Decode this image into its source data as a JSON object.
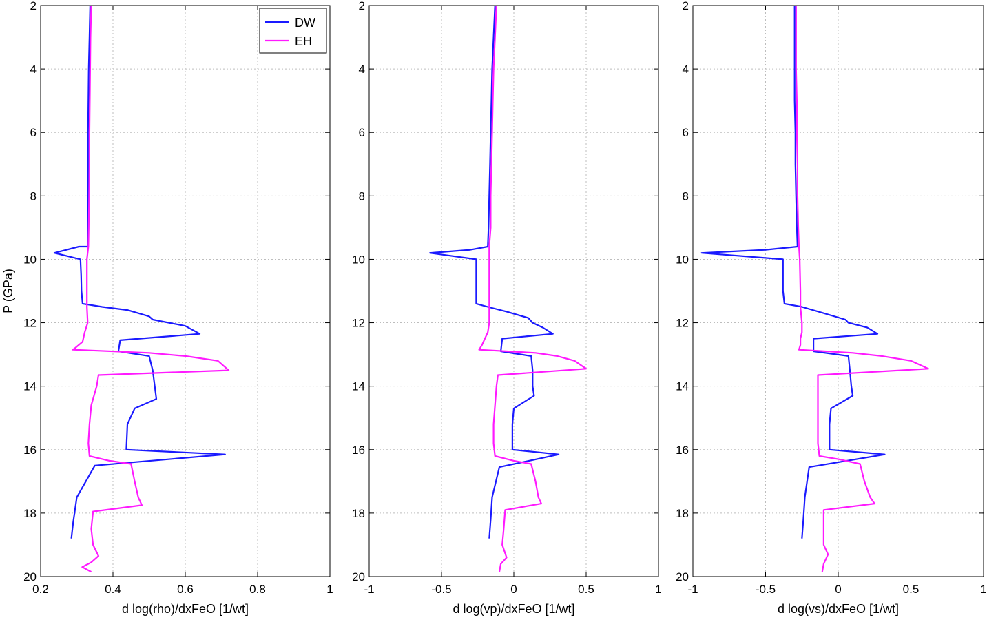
{
  "figure": {
    "colors": {
      "DW": "#1a1aff",
      "EH": "#ff1aff",
      "grid": "#bdbdbd",
      "axis": "#000000"
    }
  },
  "chart_data": [
    {
      "type": "line",
      "xlabel": "d log(rho)/dxFeO [1/wt]",
      "ylabel": "P (GPa)",
      "xlim": [
        0.2,
        1
      ],
      "ylim": [
        2,
        20
      ],
      "y_reversed": true,
      "grid": true,
      "xticks": [
        0.2,
        0.4,
        0.6,
        0.8,
        1
      ],
      "xtick_labels": [
        "0.2",
        "0.4",
        "0.6",
        "0.8",
        "1"
      ],
      "yticks": [
        2,
        4,
        6,
        8,
        10,
        12,
        14,
        16,
        18,
        20
      ],
      "ytick_labels": [
        "2",
        "4",
        "6",
        "8",
        "10",
        "12",
        "14",
        "16",
        "18",
        "20"
      ],
      "legend": {
        "placement": "top-right",
        "entries": [
          "DW",
          "EH"
        ]
      },
      "series": [
        {
          "name": "DW",
          "color": "#1a1aff",
          "points": [
            [
              0.337,
              2
            ],
            [
              0.335,
              3
            ],
            [
              0.333,
              4
            ],
            [
              0.332,
              5
            ],
            [
              0.331,
              6
            ],
            [
              0.331,
              7
            ],
            [
              0.331,
              8
            ],
            [
              0.33,
              9
            ],
            [
              0.33,
              9.6
            ],
            [
              0.306,
              9.6
            ],
            [
              0.238,
              9.8
            ],
            [
              0.31,
              10.0
            ],
            [
              0.312,
              10.5
            ],
            [
              0.313,
              11.0
            ],
            [
              0.316,
              11.4
            ],
            [
              0.37,
              11.5
            ],
            [
              0.44,
              11.6
            ],
            [
              0.5,
              11.8
            ],
            [
              0.51,
              11.9
            ],
            [
              0.6,
              12.1
            ],
            [
              0.64,
              12.35
            ],
            [
              0.42,
              12.55
            ],
            [
              0.415,
              12.9
            ],
            [
              0.5,
              13.05
            ],
            [
              0.51,
              13.5
            ],
            [
              0.52,
              14.4
            ],
            [
              0.46,
              14.7
            ],
            [
              0.44,
              15.2
            ],
            [
              0.437,
              16.0
            ],
            [
              0.71,
              16.15
            ],
            [
              0.35,
              16.5
            ],
            [
              0.3,
              17.5
            ],
            [
              0.29,
              18.3
            ],
            [
              0.285,
              18.8
            ]
          ]
        },
        {
          "name": "EH",
          "color": "#ff1aff",
          "points": [
            [
              0.34,
              2
            ],
            [
              0.338,
              3
            ],
            [
              0.337,
              4
            ],
            [
              0.336,
              5
            ],
            [
              0.335,
              6
            ],
            [
              0.335,
              7
            ],
            [
              0.334,
              8
            ],
            [
              0.333,
              9
            ],
            [
              0.332,
              9.6
            ],
            [
              0.328,
              10.0
            ],
            [
              0.328,
              11.0
            ],
            [
              0.328,
              11.5
            ],
            [
              0.33,
              12.0
            ],
            [
              0.322,
              12.3
            ],
            [
              0.316,
              12.6
            ],
            [
              0.295,
              12.8
            ],
            [
              0.289,
              12.85
            ],
            [
              0.5,
              12.95
            ],
            [
              0.6,
              13.05
            ],
            [
              0.69,
              13.2
            ],
            [
              0.72,
              13.5
            ],
            [
              0.36,
              13.65
            ],
            [
              0.355,
              14.0
            ],
            [
              0.34,
              14.6
            ],
            [
              0.335,
              15.2
            ],
            [
              0.332,
              15.8
            ],
            [
              0.335,
              16.2
            ],
            [
              0.39,
              16.35
            ],
            [
              0.45,
              16.45
            ],
            [
              0.46,
              17.0
            ],
            [
              0.47,
              17.5
            ],
            [
              0.48,
              17.75
            ],
            [
              0.345,
              17.95
            ],
            [
              0.34,
              18.5
            ],
            [
              0.345,
              19.0
            ],
            [
              0.36,
              19.35
            ],
            [
              0.34,
              19.55
            ],
            [
              0.315,
              19.7
            ],
            [
              0.34,
              19.85
            ]
          ]
        }
      ]
    },
    {
      "type": "line",
      "xlabel": "d log(vp)/dxFeO [1/wt]",
      "ylabel": "",
      "xlim": [
        -1,
        1
      ],
      "ylim": [
        2,
        20
      ],
      "y_reversed": true,
      "grid": true,
      "xticks": [
        -1,
        -0.5,
        0,
        0.5,
        1
      ],
      "xtick_labels": [
        "-1",
        "-0.5",
        "0",
        "0.5",
        "1"
      ],
      "yticks": [
        2,
        4,
        6,
        8,
        10,
        12,
        14,
        16,
        18,
        20
      ],
      "ytick_labels": [
        "2",
        "4",
        "6",
        "8",
        "10",
        "12",
        "14",
        "16",
        "18",
        "20"
      ],
      "series": [
        {
          "name": "DW",
          "color": "#1a1aff",
          "points": [
            [
              -0.13,
              2
            ],
            [
              -0.14,
              3
            ],
            [
              -0.15,
              4
            ],
            [
              -0.155,
              5
            ],
            [
              -0.16,
              6
            ],
            [
              -0.165,
              7
            ],
            [
              -0.17,
              8
            ],
            [
              -0.175,
              9
            ],
            [
              -0.18,
              9.6
            ],
            [
              -0.3,
              9.7
            ],
            [
              -0.58,
              9.8
            ],
            [
              -0.26,
              10.0
            ],
            [
              -0.26,
              10.5
            ],
            [
              -0.26,
              11.0
            ],
            [
              -0.26,
              11.4
            ],
            [
              -0.18,
              11.5
            ],
            [
              -0.05,
              11.65
            ],
            [
              0.1,
              11.85
            ],
            [
              0.13,
              12.0
            ],
            [
              0.2,
              12.15
            ],
            [
              0.27,
              12.35
            ],
            [
              -0.08,
              12.5
            ],
            [
              -0.09,
              12.9
            ],
            [
              0.12,
              13.05
            ],
            [
              0.13,
              13.5
            ],
            [
              0.13,
              14.0
            ],
            [
              0.14,
              14.3
            ],
            [
              0.0,
              14.7
            ],
            [
              -0.01,
              15.2
            ],
            [
              -0.01,
              16.0
            ],
            [
              0.31,
              16.15
            ],
            [
              -0.1,
              16.55
            ],
            [
              -0.15,
              17.5
            ],
            [
              -0.16,
              18.2
            ],
            [
              -0.17,
              18.8
            ]
          ]
        },
        {
          "name": "EH",
          "color": "#ff1aff",
          "points": [
            [
              -0.12,
              2
            ],
            [
              -0.13,
              3
            ],
            [
              -0.14,
              4
            ],
            [
              -0.145,
              5
            ],
            [
              -0.15,
              6
            ],
            [
              -0.155,
              7
            ],
            [
              -0.16,
              8
            ],
            [
              -0.16,
              9
            ],
            [
              -0.17,
              9.6
            ],
            [
              -0.17,
              10.0
            ],
            [
              -0.17,
              11.0
            ],
            [
              -0.17,
              11.5
            ],
            [
              -0.17,
              12.0
            ],
            [
              -0.18,
              12.3
            ],
            [
              -0.2,
              12.5
            ],
            [
              -0.22,
              12.7
            ],
            [
              -0.24,
              12.85
            ],
            [
              0.15,
              12.95
            ],
            [
              0.3,
              13.05
            ],
            [
              0.42,
              13.2
            ],
            [
              0.5,
              13.45
            ],
            [
              -0.11,
              13.65
            ],
            [
              -0.12,
              14.0
            ],
            [
              -0.13,
              14.6
            ],
            [
              -0.14,
              15.2
            ],
            [
              -0.14,
              15.8
            ],
            [
              -0.13,
              16.2
            ],
            [
              0.0,
              16.35
            ],
            [
              0.12,
              16.45
            ],
            [
              0.15,
              17.0
            ],
            [
              0.17,
              17.5
            ],
            [
              0.19,
              17.7
            ],
            [
              -0.06,
              17.9
            ],
            [
              -0.07,
              18.5
            ],
            [
              -0.08,
              19.0
            ],
            [
              -0.05,
              19.4
            ],
            [
              -0.09,
              19.6
            ],
            [
              -0.1,
              19.85
            ]
          ]
        }
      ]
    },
    {
      "type": "line",
      "xlabel": "d log(vs)/dxFeO [1/wt]",
      "ylabel": "",
      "xlim": [
        -1,
        1
      ],
      "ylim": [
        2,
        20
      ],
      "y_reversed": true,
      "grid": true,
      "xticks": [
        -1,
        -0.5,
        0,
        0.5,
        1
      ],
      "xtick_labels": [
        "-1",
        "-0.5",
        "0",
        "0.5",
        "1"
      ],
      "yticks": [
        2,
        4,
        6,
        8,
        10,
        12,
        14,
        16,
        18,
        20
      ],
      "ytick_labels": [
        "2",
        "4",
        "6",
        "8",
        "10",
        "12",
        "14",
        "16",
        "18",
        "20"
      ],
      "series": [
        {
          "name": "DW",
          "color": "#1a1aff",
          "points": [
            [
              -0.3,
              2
            ],
            [
              -0.3,
              3
            ],
            [
              -0.3,
              4
            ],
            [
              -0.3,
              5
            ],
            [
              -0.295,
              6
            ],
            [
              -0.295,
              7
            ],
            [
              -0.29,
              8
            ],
            [
              -0.285,
              9
            ],
            [
              -0.28,
              9.6
            ],
            [
              -0.5,
              9.7
            ],
            [
              -0.94,
              9.8
            ],
            [
              -0.38,
              10.0
            ],
            [
              -0.38,
              10.5
            ],
            [
              -0.38,
              11.0
            ],
            [
              -0.37,
              11.4
            ],
            [
              -0.25,
              11.5
            ],
            [
              -0.1,
              11.7
            ],
            [
              0.05,
              11.9
            ],
            [
              0.07,
              12.0
            ],
            [
              0.2,
              12.15
            ],
            [
              0.27,
              12.35
            ],
            [
              -0.17,
              12.5
            ],
            [
              -0.17,
              12.9
            ],
            [
              0.07,
              13.05
            ],
            [
              0.08,
              13.5
            ],
            [
              0.09,
              14.0
            ],
            [
              0.1,
              14.3
            ],
            [
              -0.05,
              14.7
            ],
            [
              -0.06,
              15.2
            ],
            [
              -0.06,
              16.0
            ],
            [
              0.32,
              16.15
            ],
            [
              -0.2,
              16.55
            ],
            [
              -0.23,
              17.5
            ],
            [
              -0.24,
              18.2
            ],
            [
              -0.25,
              18.8
            ]
          ]
        },
        {
          "name": "EH",
          "color": "#ff1aff",
          "points": [
            [
              -0.29,
              2
            ],
            [
              -0.29,
              3
            ],
            [
              -0.29,
              4
            ],
            [
              -0.285,
              5
            ],
            [
              -0.285,
              6
            ],
            [
              -0.28,
              7
            ],
            [
              -0.28,
              8
            ],
            [
              -0.275,
              9
            ],
            [
              -0.27,
              9.6
            ],
            [
              -0.265,
              10.0
            ],
            [
              -0.26,
              11.0
            ],
            [
              -0.26,
              11.5
            ],
            [
              -0.25,
              12.0
            ],
            [
              -0.25,
              12.3
            ],
            [
              -0.26,
              12.5
            ],
            [
              -0.26,
              12.7
            ],
            [
              -0.27,
              12.85
            ],
            [
              0.1,
              12.95
            ],
            [
              0.3,
              13.05
            ],
            [
              0.5,
              13.2
            ],
            [
              0.62,
              13.45
            ],
            [
              -0.14,
              13.65
            ],
            [
              -0.14,
              14.0
            ],
            [
              -0.14,
              14.6
            ],
            [
              -0.14,
              15.2
            ],
            [
              -0.14,
              15.8
            ],
            [
              -0.13,
              16.2
            ],
            [
              0.0,
              16.3
            ],
            [
              0.15,
              16.45
            ],
            [
              0.18,
              17.0
            ],
            [
              0.22,
              17.5
            ],
            [
              0.25,
              17.7
            ],
            [
              -0.1,
              17.9
            ],
            [
              -0.1,
              18.5
            ],
            [
              -0.1,
              19.0
            ],
            [
              -0.07,
              19.3
            ],
            [
              -0.1,
              19.6
            ],
            [
              -0.11,
              19.85
            ]
          ]
        }
      ]
    }
  ]
}
